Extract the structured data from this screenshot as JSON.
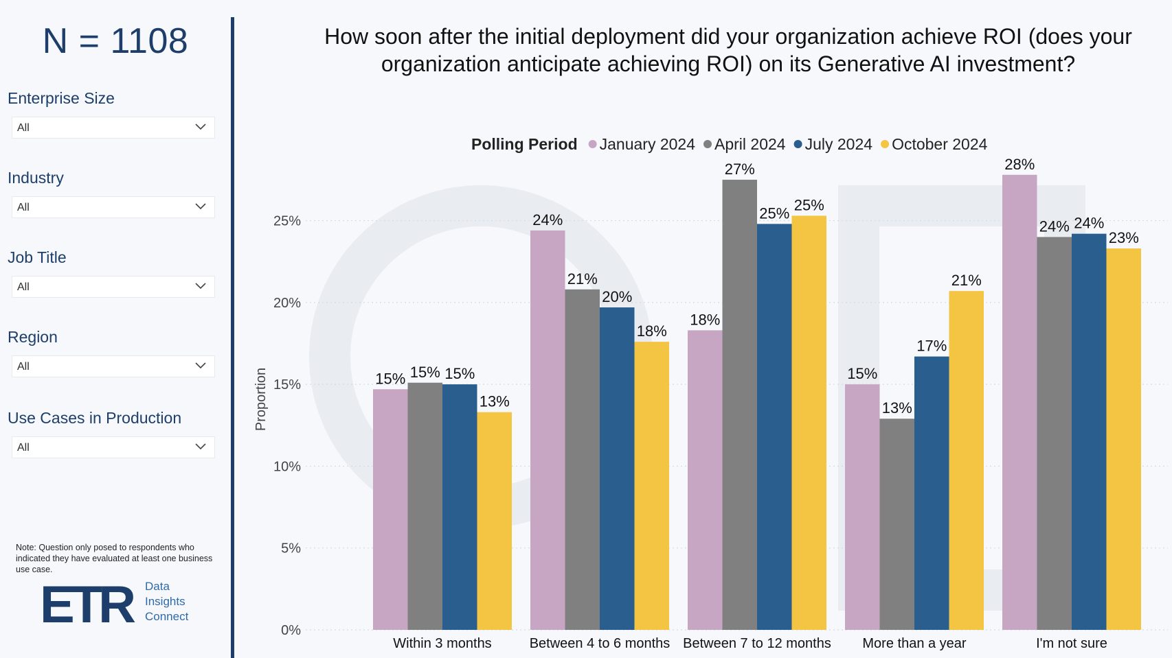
{
  "sidebar": {
    "n_count": "N = 1108",
    "filters": [
      {
        "label": "Enterprise Size",
        "value": "All"
      },
      {
        "label": "Industry",
        "value": "All"
      },
      {
        "label": "Job Title",
        "value": "All"
      },
      {
        "label": "Region",
        "value": "All"
      },
      {
        "label": "Use Cases in Production",
        "value": "All"
      }
    ],
    "note": "Note: Question only posed to respondents who indicated they have evaluated at least one business use case.",
    "logo": {
      "mark": "ETR",
      "line1": "Data",
      "line2": "Insights",
      "line3": "Connect"
    }
  },
  "colors": {
    "accent": "#1d3e6b",
    "series": [
      "#c7a6c3",
      "#808080",
      "#2a5e8e",
      "#f4c443"
    ]
  },
  "chart_data": {
    "type": "bar",
    "title": "How soon after the initial deployment did your organization achieve ROI (does your organization anticipate achieving ROI) on its Generative AI investment?",
    "legend_title": "Polling Period",
    "ylabel": "Proportion",
    "xlabel": "",
    "ylim": [
      0,
      28
    ],
    "yticks": [
      "0%",
      "5%",
      "10%",
      "15%",
      "20%",
      "25%"
    ],
    "ytick_values": [
      0,
      5,
      10,
      15,
      20,
      25
    ],
    "grid": true,
    "legend_position": "top-center",
    "categories": [
      "Within 3 months",
      "Between 4 to 6 months",
      "Between 7 to 12 months",
      "More than a year",
      "I'm not sure"
    ],
    "series": [
      {
        "name": "January 2024",
        "values": [
          14.7,
          24.4,
          18.3,
          15.0,
          27.8
        ],
        "labels": [
          "15%",
          "24%",
          "18%",
          "15%",
          "28%"
        ]
      },
      {
        "name": "April 2024",
        "values": [
          15.1,
          20.8,
          27.5,
          12.9,
          24.0
        ],
        "labels": [
          "15%",
          "21%",
          "27%",
          "13%",
          "24%"
        ]
      },
      {
        "name": "July 2024",
        "values": [
          15.0,
          19.7,
          24.8,
          16.7,
          24.2
        ],
        "labels": [
          "15%",
          "20%",
          "25%",
          "17%",
          "24%"
        ]
      },
      {
        "name": "October 2024",
        "values": [
          13.3,
          17.6,
          25.3,
          20.7,
          23.3
        ],
        "labels": [
          "13%",
          "18%",
          "25%",
          "21%",
          "23%"
        ]
      }
    ]
  }
}
